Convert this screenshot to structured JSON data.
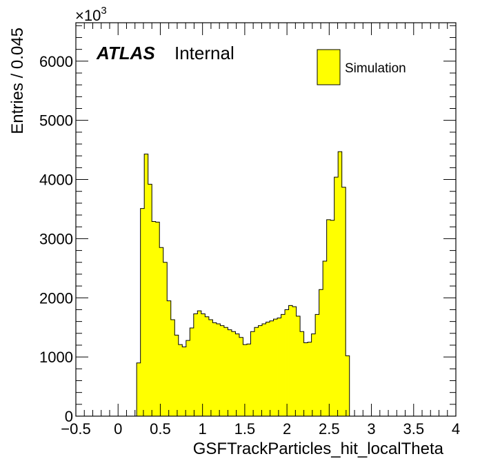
{
  "chart_data": {
    "type": "bar",
    "style": "histogram",
    "xlabel": "GSFTrackParticles_hit_localTheta",
    "ylabel": "Entries / 0.045",
    "xlim": [
      -0.5,
      4
    ],
    "ylim": [
      0,
      6650
    ],
    "y_multiplier": "×10",
    "y_multiplier_exponent": "3",
    "xticks": [
      "−0.5",
      "0",
      "0.5",
      "1",
      "1.5",
      "2",
      "2.5",
      "3",
      "3.5",
      "4"
    ],
    "yticks": [
      "0",
      "1000",
      "2000",
      "3000",
      "4000",
      "5000",
      "6000"
    ],
    "grid": false,
    "legend_position": "top-right",
    "bin_width": 0.045,
    "x_start": 0.22,
    "series": [
      {
        "name": "Simulation",
        "color": "#ffff00",
        "values": [
          900,
          3510,
          4430,
          3920,
          3290,
          3280,
          2850,
          2600,
          1950,
          1630,
          1370,
          1210,
          1170,
          1280,
          1490,
          1730,
          1780,
          1730,
          1680,
          1630,
          1580,
          1560,
          1530,
          1500,
          1460,
          1430,
          1390,
          1330,
          1210,
          1220,
          1430,
          1500,
          1530,
          1560,
          1590,
          1610,
          1640,
          1660,
          1720,
          1800,
          1870,
          1850,
          1690,
          1430,
          1240,
          1250,
          1390,
          1720,
          2140,
          2620,
          3320,
          3310,
          4040,
          4470,
          3870,
          1020
        ]
      }
    ]
  },
  "annotations": {
    "atlas": "ATLAS",
    "internal": "Internal"
  },
  "colors": {
    "fill": "#ffff00",
    "line": "#000000"
  }
}
